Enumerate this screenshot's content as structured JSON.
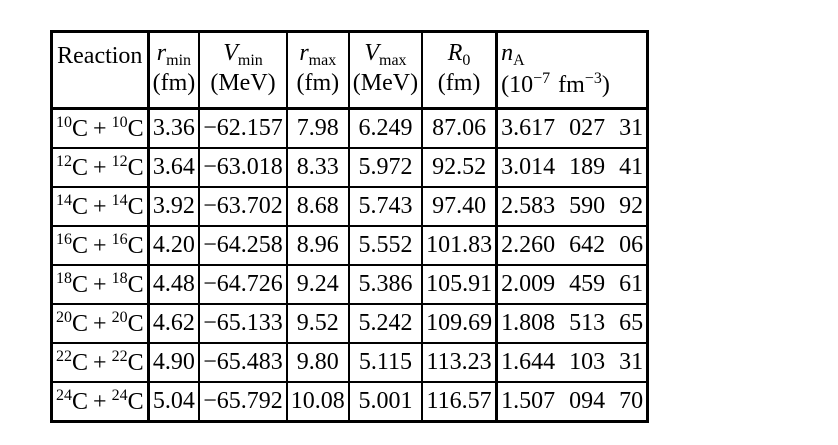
{
  "table": {
    "columns": [
      {
        "symbol": "Reaction"
      },
      {
        "symbol": "r",
        "sub": "min",
        "unit": "(fm)"
      },
      {
        "symbol": "V",
        "sub": "min",
        "unit": "(MeV)"
      },
      {
        "symbol": "r",
        "sub": "max",
        "unit": "(fm)"
      },
      {
        "symbol": "V",
        "sub": "max",
        "unit": "(MeV)"
      },
      {
        "symbol": "R",
        "sub": "0",
        "unit": "(fm)"
      },
      {
        "symbol": "n",
        "sub": "A",
        "unit": {
          "open": "(10",
          "exp": "−7",
          "unit": "fm",
          "unit_exp": "−3",
          "close": ")"
        }
      }
    ],
    "rows": [
      {
        "reaction": {
          "mass1": "10",
          "el1": "C",
          "op": "+",
          "mass2": "10",
          "el2": "C"
        },
        "cells": [
          "3.36",
          "−62.157",
          "7.98",
          "6.249",
          "87.06",
          "3.617 027 31"
        ]
      },
      {
        "reaction": {
          "mass1": "12",
          "el1": "C",
          "op": "+",
          "mass2": "12",
          "el2": "C"
        },
        "cells": [
          "3.64",
          "−63.018",
          "8.33",
          "5.972",
          "92.52",
          "3.014 189 41"
        ]
      },
      {
        "reaction": {
          "mass1": "14",
          "el1": "C",
          "op": "+",
          "mass2": "14",
          "el2": "C"
        },
        "cells": [
          "3.92",
          "−63.702",
          "8.68",
          "5.743",
          "97.40",
          "2.583 590 92"
        ]
      },
      {
        "reaction": {
          "mass1": "16",
          "el1": "C",
          "op": "+",
          "mass2": "16",
          "el2": "C"
        },
        "cells": [
          "4.20",
          "−64.258",
          "8.96",
          "5.552",
          "101.83",
          "2.260 642 06"
        ]
      },
      {
        "reaction": {
          "mass1": "18",
          "el1": "C",
          "op": "+",
          "mass2": "18",
          "el2": "C"
        },
        "cells": [
          "4.48",
          "−64.726",
          "9.24",
          "5.386",
          "105.91",
          "2.009 459 61"
        ]
      },
      {
        "reaction": {
          "mass1": "20",
          "el1": "C",
          "op": "+",
          "mass2": "20",
          "el2": "C"
        },
        "cells": [
          "4.62",
          "−65.133",
          "9.52",
          "5.242",
          "109.69",
          "1.808 513 65"
        ]
      },
      {
        "reaction": {
          "mass1": "22",
          "el1": "C",
          "op": "+",
          "mass2": "22",
          "el2": "C"
        },
        "cells": [
          "4.90",
          "−65.483",
          "9.80",
          "5.115",
          "113.23",
          "1.644 103 31"
        ]
      },
      {
        "reaction": {
          "mass1": "24",
          "el1": "C",
          "op": "+",
          "mass2": "24",
          "el2": "C"
        },
        "cells": [
          "5.04",
          "−65.792",
          "10.08",
          "5.001",
          "116.57",
          "1.507 094 70"
        ]
      }
    ]
  }
}
